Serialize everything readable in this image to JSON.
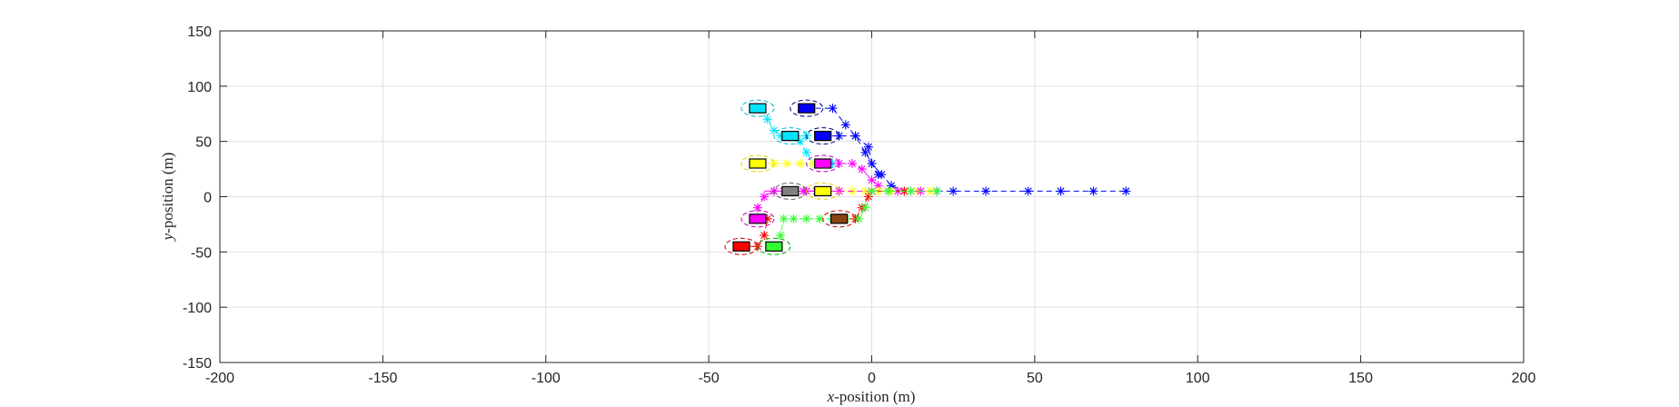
{
  "chart_data": {
    "type": "scatter",
    "title": "",
    "xlabel": {
      "var": "x",
      "rest": "-position (m)"
    },
    "ylabel": {
      "var": "y",
      "rest": "-position (m)"
    },
    "xlim": [
      -200,
      200
    ],
    "ylim": [
      -150,
      150
    ],
    "xticks": [
      "-200",
      "-150",
      "-100",
      "-50",
      "0",
      "50",
      "100",
      "150",
      "200"
    ],
    "yticks": [
      "150",
      "100",
      "50",
      "0",
      "-50",
      "-100",
      "-150"
    ],
    "grid": true,
    "vehicles": [
      {
        "color": "#0000ff",
        "dash": "#00008b",
        "x": -20,
        "y": 80,
        "trail": [
          [
            -20,
            80
          ],
          [
            -12,
            80
          ],
          [
            -8,
            65
          ],
          [
            -5,
            55
          ],
          [
            -1,
            45
          ],
          [
            0,
            30
          ],
          [
            3,
            20
          ],
          [
            6,
            10
          ],
          [
            10,
            5
          ],
          [
            20,
            5
          ],
          [
            25,
            5
          ],
          [
            35,
            5
          ],
          [
            48,
            5
          ],
          [
            58,
            5
          ],
          [
            68,
            5
          ],
          [
            78,
            5
          ]
        ]
      },
      {
        "color": "#00e5ff",
        "dash": "#00bcd4",
        "x": -35,
        "y": 80,
        "trail": [
          [
            -35,
            80
          ],
          [
            -32,
            70
          ],
          [
            -30,
            60
          ],
          [
            -28,
            55
          ],
          [
            -25,
            55
          ],
          [
            -20,
            55
          ]
        ]
      },
      {
        "color": "#00e5ff",
        "dash": "#00bcd4",
        "x": -25,
        "y": 55,
        "trail": [
          [
            -25,
            55
          ],
          [
            -22,
            50
          ],
          [
            -20,
            40
          ],
          [
            -18,
            30
          ],
          [
            -15,
            30
          ],
          [
            -12,
            30
          ]
        ]
      },
      {
        "color": "#0000ff",
        "dash": "#00008b",
        "x": -15,
        "y": 55,
        "trail": [
          [
            -15,
            55
          ],
          [
            -10,
            55
          ],
          [
            -5,
            55
          ],
          [
            -2,
            40
          ],
          [
            0,
            30
          ],
          [
            2,
            20
          ]
        ]
      },
      {
        "color": "#ffff00",
        "dash": "#e6d200",
        "x": -35,
        "y": 30,
        "trail": [
          [
            -35,
            30
          ],
          [
            -30,
            30
          ],
          [
            -26,
            30
          ],
          [
            -22,
            30
          ],
          [
            -18,
            30
          ]
        ]
      },
      {
        "color": "#ff00ff",
        "dash": "#c000c0",
        "x": -15,
        "y": 30,
        "trail": [
          [
            -15,
            30
          ],
          [
            -10,
            30
          ],
          [
            -6,
            30
          ],
          [
            -3,
            25
          ],
          [
            0,
            15
          ],
          [
            2,
            10
          ]
        ]
      },
      {
        "color": "#808080",
        "dash": "#606060",
        "x": -25,
        "y": 5,
        "trail": [
          [
            -33,
            5
          ],
          [
            -30,
            5
          ],
          [
            -27,
            5
          ],
          [
            -25,
            5
          ],
          [
            -21,
            5
          ],
          [
            -17,
            5
          ]
        ]
      },
      {
        "color": "#ffff00",
        "dash": "#e6d200",
        "x": -15,
        "y": 5,
        "trail": [
          [
            -15,
            5
          ],
          [
            -10,
            5
          ],
          [
            -6,
            5
          ],
          [
            -2,
            5
          ],
          [
            2,
            5
          ],
          [
            6,
            5
          ],
          [
            10,
            5
          ],
          [
            14,
            5
          ],
          [
            18,
            5
          ]
        ]
      },
      {
        "color": "#ff00ff",
        "dash": "#c000c0",
        "x": -35,
        "y": -20,
        "trail": [
          [
            -35,
            -20
          ],
          [
            -35,
            -10
          ],
          [
            -33,
            0
          ],
          [
            -30,
            5
          ],
          [
            -20,
            5
          ],
          [
            -10,
            5
          ],
          [
            0,
            5
          ],
          [
            8,
            5
          ],
          [
            15,
            5
          ]
        ]
      },
      {
        "color": "#8b4513",
        "dash": "#cc0000",
        "x": -10,
        "y": -20,
        "trail": [
          [
            -10,
            -20
          ],
          [
            -5,
            -20
          ],
          [
            -3,
            -10
          ],
          [
            -1,
            0
          ],
          [
            0,
            5
          ],
          [
            5,
            5
          ],
          [
            10,
            5
          ]
        ]
      },
      {
        "color": "#ff0000",
        "dash": "#cc0000",
        "x": -40,
        "y": -45,
        "trail": [
          [
            -40,
            -45
          ],
          [
            -35,
            -45
          ],
          [
            -33,
            -35
          ],
          [
            -32,
            -20
          ]
        ]
      },
      {
        "color": "#33ff33",
        "dash": "#00b000",
        "x": -30,
        "y": -45,
        "trail": [
          [
            -30,
            -45
          ],
          [
            -28,
            -35
          ],
          [
            -27,
            -20
          ],
          [
            -24,
            -20
          ],
          [
            -20,
            -20
          ],
          [
            -16,
            -20
          ],
          [
            -12,
            -20
          ],
          [
            -8,
            -20
          ],
          [
            -4,
            -20
          ],
          [
            -2,
            -10
          ],
          [
            0,
            5
          ],
          [
            5,
            5
          ],
          [
            12,
            5
          ],
          [
            20,
            5
          ]
        ]
      }
    ]
  }
}
